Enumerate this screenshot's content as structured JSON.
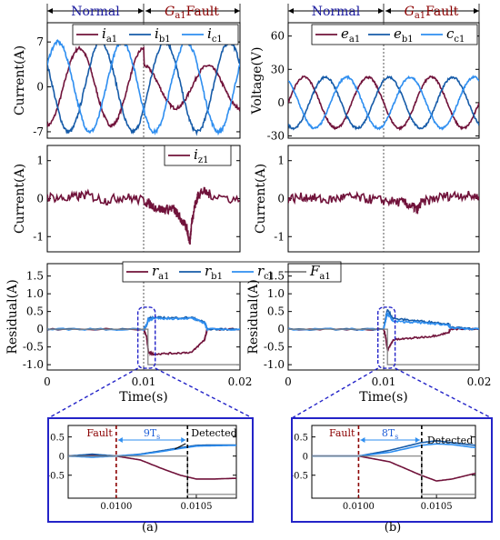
{
  "colors": {
    "phase_a": "#70123a",
    "phase_b": "#165ba8",
    "phase_c": "#2e8ef0",
    "flag": "#7f7f7f",
    "zoom_frame": "#2323c8",
    "fault_line": "#8b0000"
  },
  "headers": {
    "normal": "Normal",
    "fault_symbol": "G",
    "fault_sub": "a1",
    "fault_word": "Fault"
  },
  "captions": [
    "(a)",
    "(b)"
  ],
  "zoom_labels": {
    "fault": "Fault",
    "detected": "Detected",
    "delay_a": "9T",
    "delay_b": "8T",
    "delay_sub": "s"
  },
  "chart_data": [
    {
      "id": "a-current",
      "type": "line",
      "column": "a",
      "ylabel": "Current(A)",
      "xlim": [
        0,
        0.02
      ],
      "ylim": [
        -8,
        10
      ],
      "yticks": [
        7,
        0,
        -7
      ],
      "fault_time": 0.01,
      "legend": [
        {
          "sym": "i",
          "sub": "a1"
        },
        {
          "sym": "i",
          "sub": "b1"
        },
        {
          "sym": "i",
          "sub": "c1"
        }
      ],
      "series": [
        {
          "name": "i_a1",
          "amplitude": 6,
          "phase_deg": 270,
          "post_fault": "distorted"
        },
        {
          "name": "i_b1",
          "amplitude": 7,
          "phase_deg": 150
        },
        {
          "name": "i_c1",
          "amplitude": 7,
          "phase_deg": 30
        }
      ],
      "frequency_hz": 150
    },
    {
      "id": "b-voltage",
      "type": "line",
      "column": "b",
      "ylabel": "Voltage(V)",
      "xlim": [
        0,
        0.02
      ],
      "ylim": [
        -32,
        72
      ],
      "yticks": [
        60,
        30,
        0,
        -30
      ],
      "fault_time": 0.01,
      "legend": [
        {
          "sym": "e",
          "sub": "a1"
        },
        {
          "sym": "e",
          "sub": "b1"
        },
        {
          "sym": "c",
          "sub": "c1"
        }
      ],
      "series": [
        {
          "name": "e_a1",
          "amplitude": 23,
          "phase_deg": 0
        },
        {
          "name": "e_b1",
          "amplitude": 23,
          "phase_deg": 240
        },
        {
          "name": "e_c1",
          "amplitude": 23,
          "phase_deg": 120
        }
      ],
      "frequency_hz": 150
    },
    {
      "id": "a-zero-current",
      "type": "line",
      "column": "a",
      "ylabel": "Current(A)",
      "xlim": [
        0,
        0.02
      ],
      "ylim": [
        -1.4,
        1.4
      ],
      "yticks": [
        1,
        0,
        -1
      ],
      "fault_time": 0.01,
      "legend": [
        {
          "sym": "i",
          "sub": "z1"
        }
      ],
      "series": [
        {
          "name": "i_z1",
          "x": [
            0,
            0.002,
            0.004,
            0.006,
            0.008,
            0.01,
            0.011,
            0.012,
            0.013,
            0.0135,
            0.014,
            0.0145,
            0.0148,
            0.015,
            0.0153,
            0.0156,
            0.016,
            0.017,
            0.02
          ],
          "y": [
            0.05,
            0.0,
            0.1,
            -0.05,
            0.05,
            -0.05,
            -0.2,
            -0.3,
            -0.25,
            -0.4,
            -0.6,
            -0.8,
            -1.15,
            -0.6,
            -0.2,
            0.05,
            0.2,
            0.1,
            -0.05
          ]
        }
      ]
    },
    {
      "id": "b-zero-current",
      "type": "line",
      "column": "b",
      "ylabel": "Current(A)",
      "xlim": [
        0,
        0.02
      ],
      "ylim": [
        -1.4,
        1.4
      ],
      "yticks": [
        1,
        0,
        -1
      ],
      "fault_time": 0.01,
      "series": [
        {
          "name": "i_z1",
          "x": [
            0,
            0.002,
            0.004,
            0.006,
            0.008,
            0.01,
            0.012,
            0.013,
            0.0135,
            0.014,
            0.016,
            0.018,
            0.02
          ],
          "y": [
            0.0,
            0.05,
            -0.05,
            0.05,
            0.0,
            -0.05,
            -0.1,
            -0.2,
            -0.3,
            -0.1,
            0.05,
            0.1,
            0.05
          ]
        }
      ]
    },
    {
      "id": "a-residual",
      "type": "line",
      "column": "a",
      "ylabel": "Residual(A)",
      "xlabel": "Time(s)",
      "xlim": [
        0,
        0.02
      ],
      "ylim": [
        -1.15,
        1.85
      ],
      "yticks": [
        1.5,
        1.0,
        0.5,
        0,
        -0.5,
        -1.0
      ],
      "xticks": [
        0,
        0.01,
        0.02
      ],
      "fault_time": 0.01,
      "legend": [
        {
          "sym": "r",
          "sub": "a1"
        },
        {
          "sym": "r",
          "sub": "b1"
        },
        {
          "sym": "r",
          "sub": "c1"
        },
        {
          "sym": "F",
          "sub": "a1"
        }
      ],
      "series": [
        {
          "name": "r_a1",
          "x": [
            0,
            0.01,
            0.0103,
            0.0105,
            0.011,
            0.013,
            0.015,
            0.0163,
            0.0166,
            0.02
          ],
          "y": [
            0,
            0,
            -0.2,
            -0.65,
            -0.7,
            -0.68,
            -0.65,
            -0.3,
            0,
            0
          ]
        },
        {
          "name": "r_b1",
          "x": [
            0,
            0.01,
            0.0103,
            0.0105,
            0.011,
            0.013,
            0.015,
            0.0163,
            0.0166,
            0.02
          ],
          "y": [
            0,
            0,
            0.1,
            0.3,
            0.33,
            0.32,
            0.33,
            0.2,
            0,
            0
          ]
        },
        {
          "name": "r_c1",
          "x": [
            0,
            0.01,
            0.0103,
            0.0105,
            0.011,
            0.013,
            0.015,
            0.0163,
            0.0166,
            0.02
          ],
          "y": [
            0,
            0,
            0.1,
            0.28,
            0.3,
            0.3,
            0.31,
            0.18,
            0,
            0
          ]
        },
        {
          "name": "F_a1",
          "x": [
            0,
            0.01045,
            0.01045,
            0.02
          ],
          "y": [
            0,
            0,
            -1,
            -1
          ]
        }
      ]
    },
    {
      "id": "b-residual",
      "type": "line",
      "column": "b",
      "ylabel": "Residual(A)",
      "xlabel": "Time(s)",
      "xlim": [
        0,
        0.02
      ],
      "ylim": [
        -1.15,
        1.85
      ],
      "yticks": [
        1.5,
        1.0,
        0.5,
        0,
        -0.5,
        -1.0
      ],
      "xticks": [
        0,
        0.01,
        0.02
      ],
      "fault_time": 0.01,
      "series": [
        {
          "name": "r_a1",
          "x": [
            0,
            0.01,
            0.0102,
            0.0104,
            0.011,
            0.013,
            0.015,
            0.0168,
            0.017,
            0.02
          ],
          "y": [
            0,
            0,
            -0.2,
            -0.6,
            -0.3,
            -0.25,
            -0.2,
            -0.1,
            0,
            0
          ]
        },
        {
          "name": "r_b1",
          "x": [
            0,
            0.01,
            0.0102,
            0.0104,
            0.011,
            0.013,
            0.015,
            0.0168,
            0.017,
            0.02
          ],
          "y": [
            0,
            0,
            0.3,
            0.55,
            0.3,
            0.25,
            0.2,
            0.15,
            0.05,
            0
          ]
        },
        {
          "name": "r_c1",
          "x": [
            0,
            0.01,
            0.0102,
            0.0104,
            0.011,
            0.013,
            0.015,
            0.0168,
            0.017,
            0.02
          ],
          "y": [
            0,
            0,
            0.25,
            0.45,
            0.22,
            0.2,
            0.16,
            0.12,
            0.03,
            0
          ]
        },
        {
          "name": "F_a1",
          "x": [
            0,
            0.0104,
            0.0104,
            0.02
          ],
          "y": [
            0,
            0,
            -1,
            -1
          ]
        }
      ]
    },
    {
      "id": "a-zoom",
      "type": "line",
      "column": "a",
      "xlim": [
        0.0097,
        0.01075
      ],
      "ylim": [
        -1.1,
        0.8
      ],
      "yticks": [
        0.5,
        0,
        -0.5
      ],
      "xticks": [
        0.01,
        0.0105
      ],
      "xtick_labels": [
        "0.0100",
        "0.0105"
      ],
      "fault_time": 0.01,
      "detect_time": 0.010445,
      "series": [
        {
          "name": "r_a1",
          "x": [
            0.0097,
            0.00985,
            0.01,
            0.01015,
            0.0103,
            0.0104,
            0.0105,
            0.0106,
            0.01075
          ],
          "y": [
            0,
            0.02,
            0,
            -0.1,
            -0.35,
            -0.5,
            -0.6,
            -0.6,
            -0.58
          ]
        },
        {
          "name": "r_b1",
          "x": [
            0.0097,
            0.00985,
            0.01,
            0.01015,
            0.0103,
            0.0104,
            0.0105,
            0.0106,
            0.01075
          ],
          "y": [
            0,
            0.05,
            0,
            0.05,
            0.15,
            0.22,
            0.28,
            0.29,
            0.29
          ]
        },
        {
          "name": "r_c1",
          "x": [
            0.0097,
            0.00985,
            0.01,
            0.01015,
            0.0103,
            0.0104,
            0.0105,
            0.0106,
            0.01075
          ],
          "y": [
            0,
            -0.03,
            0,
            0.04,
            0.13,
            0.2,
            0.26,
            0.27,
            0.28
          ]
        },
        {
          "name": "F_a1",
          "x": [
            0.0097,
            0.010445,
            0.010445,
            0.01075
          ],
          "y": [
            0,
            0,
            -1,
            -1
          ]
        }
      ]
    },
    {
      "id": "b-zoom",
      "type": "line",
      "column": "b",
      "xlim": [
        0.0097,
        0.01075
      ],
      "ylim": [
        -1.1,
        0.8
      ],
      "yticks": [
        0.5,
        0,
        -0.5
      ],
      "xticks": [
        0.01,
        0.0105
      ],
      "xtick_labels": [
        "0.0100",
        "0.0105"
      ],
      "fault_time": 0.01,
      "detect_time": 0.010405,
      "series": [
        {
          "name": "r_a1",
          "x": [
            0.0097,
            0.01,
            0.0102,
            0.0104,
            0.0105,
            0.0106,
            0.01075
          ],
          "y": [
            0,
            0,
            -0.15,
            -0.5,
            -0.65,
            -0.6,
            -0.45
          ]
        },
        {
          "name": "r_b1",
          "x": [
            0.0097,
            0.01,
            0.0102,
            0.0104,
            0.0105,
            0.0106,
            0.01075
          ],
          "y": [
            0,
            0,
            0.15,
            0.35,
            0.4,
            0.35,
            0.28
          ]
        },
        {
          "name": "r_c1",
          "x": [
            0.0097,
            0.01,
            0.0102,
            0.0104,
            0.0105,
            0.0106,
            0.01075
          ],
          "y": [
            0,
            0,
            0.1,
            0.28,
            0.32,
            0.3,
            0.22
          ]
        },
        {
          "name": "F_a1",
          "x": [
            0.0097,
            0.010405,
            0.010405,
            0.01075
          ],
          "y": [
            0,
            0,
            -1,
            -1
          ]
        }
      ]
    }
  ]
}
